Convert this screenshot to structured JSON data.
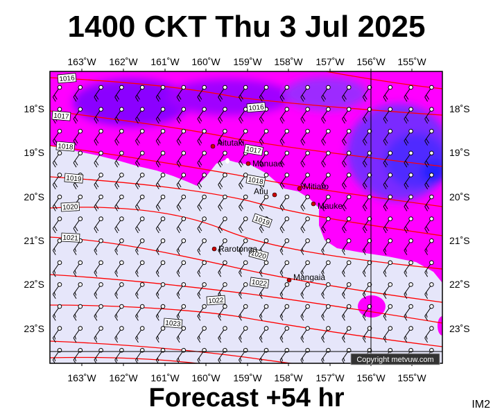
{
  "title": "1400 CKT Thu 3 Jul 2025",
  "footer": "Forecast +54 hr",
  "product_code": "IM2",
  "copyright": "Copyright metvuw.com",
  "map": {
    "lon_ticks": [
      "163˚W",
      "162˚W",
      "161˚W",
      "160˚W",
      "159˚W",
      "158˚W",
      "157˚W",
      "156˚W",
      "155˚W"
    ],
    "lat_ticks": [
      "18˚S",
      "19˚S",
      "20˚S",
      "21˚S",
      "22˚S",
      "23˚S"
    ],
    "towns": [
      {
        "name": "Aitutaki"
      },
      {
        "name": "Manuae"
      },
      {
        "name": "Mitiaro"
      },
      {
        "name": "Atiu"
      },
      {
        "name": "Mauke"
      },
      {
        "name": "Rarotonga"
      },
      {
        "name": "Mangaia"
      }
    ],
    "isobar_labels": [
      "1016",
      "1016",
      "1017",
      "1017",
      "1018",
      "1018",
      "1019",
      "1020",
      "1019",
      "1021",
      "1020",
      "1022",
      "1022",
      "1023"
    ],
    "colors": {
      "ocean_calm": "#e6e6fa",
      "wind_moderate": "#ff00ff",
      "wind_strong": "#8b00ff",
      "wind_stronger": "#5a28ff",
      "wind_strongest": "#2a2aff",
      "isobar": "#ff0000",
      "town_dot": "#cc0000"
    }
  }
}
